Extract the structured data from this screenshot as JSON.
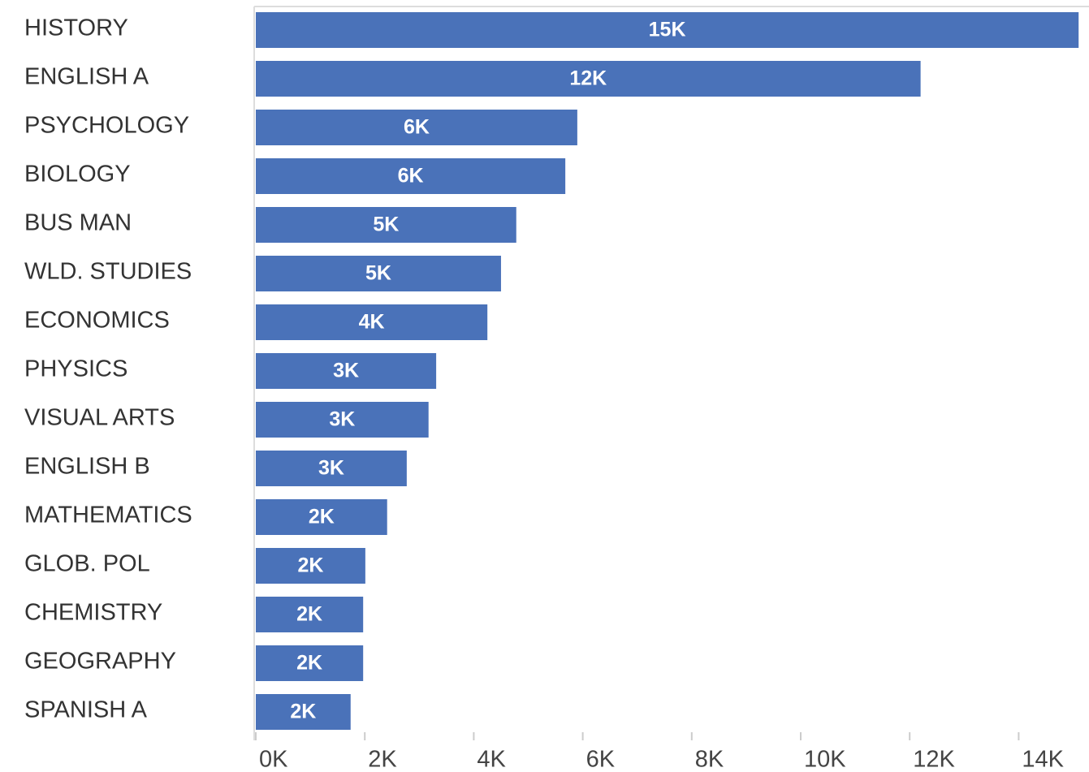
{
  "chart_data": {
    "type": "bar",
    "orientation": "horizontal",
    "categories": [
      "HISTORY",
      "ENGLISH A",
      "PSYCHOLOGY",
      "BIOLOGY",
      "BUS MAN",
      "WLD. STUDIES",
      "ECONOMICS",
      "PHYSICS",
      "VISUAL ARTS",
      "ENGLISH B",
      "MATHEMATICS",
      "GLOB. POL",
      "CHEMISTRY",
      "GEOGRAPHY",
      "SPANISH A"
    ],
    "values": [
      15100,
      12200,
      5900,
      5680,
      4780,
      4500,
      4250,
      3310,
      3170,
      2770,
      2410,
      2010,
      1970,
      1970,
      1740
    ],
    "value_labels": [
      "15K",
      "12K",
      "6K",
      "6K",
      "5K",
      "5K",
      "4K",
      "3K",
      "3K",
      "3K",
      "2K",
      "2K",
      "2K",
      "2K",
      "2K"
    ],
    "color": "#4a72b9",
    "xlim": [
      0,
      15200
    ],
    "xticks": [
      {
        "value": 0,
        "label": "0K"
      },
      {
        "value": 2000,
        "label": "2K"
      },
      {
        "value": 4000,
        "label": "4K"
      },
      {
        "value": 6000,
        "label": "6K"
      },
      {
        "value": 8000,
        "label": "8K"
      },
      {
        "value": 10000,
        "label": "10K"
      },
      {
        "value": 12000,
        "label": "12K"
      },
      {
        "value": 14000,
        "label": "14K"
      }
    ]
  }
}
